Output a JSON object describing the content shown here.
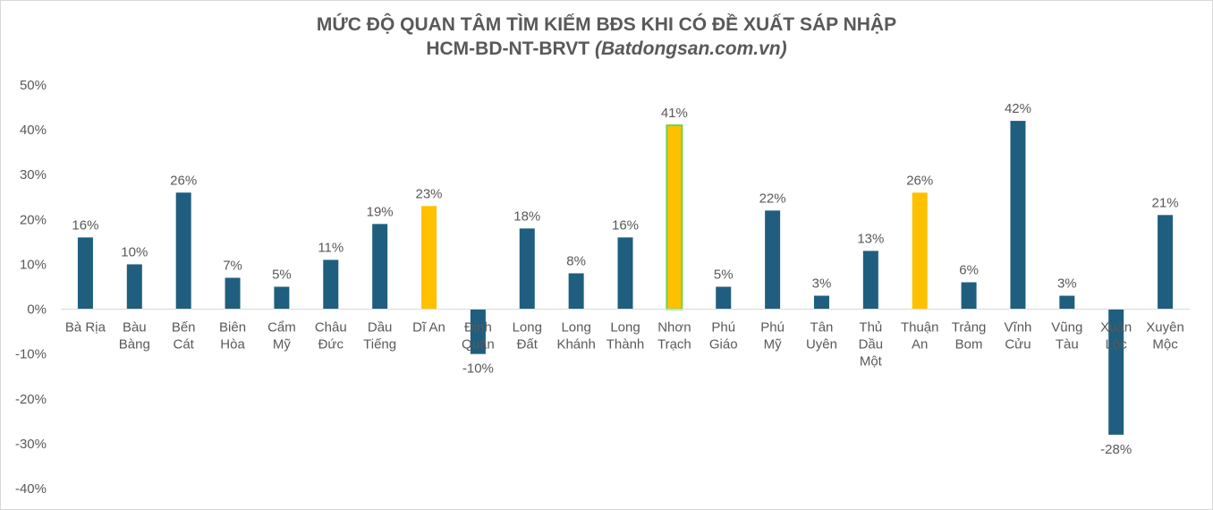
{
  "chart_data": {
    "type": "bar",
    "title": "MỨC ĐỘ QUAN TÂM TÌM KIẾM BĐS KHI CÓ ĐỀ XUẤT SÁP NHẬP",
    "subtitle": "HCM-BD-NT-BRVT",
    "source": "(Batdongsan.com.vn)",
    "categories": [
      [
        "Bà Rịa"
      ],
      [
        "Bàu",
        "Bàng"
      ],
      [
        "Bến",
        "Cát"
      ],
      [
        "Biên",
        "Hòa"
      ],
      [
        "Cẩm",
        "Mỹ"
      ],
      [
        "Châu",
        "Đức"
      ],
      [
        "Dầu",
        "Tiếng"
      ],
      [
        "Dĩ An"
      ],
      [
        "Định",
        "Quán"
      ],
      [
        "Long",
        "Đất"
      ],
      [
        "Long",
        "Khánh"
      ],
      [
        "Long",
        "Thành"
      ],
      [
        "Nhơn",
        "Trạch"
      ],
      [
        "Phú",
        "Giáo"
      ],
      [
        "Phú",
        "Mỹ"
      ],
      [
        "Tân",
        "Uyên"
      ],
      [
        "Thủ",
        "Dầu",
        "Một"
      ],
      [
        "Thuận",
        "An"
      ],
      [
        "Trảng",
        "Bom"
      ],
      [
        "Vĩnh",
        "Cửu"
      ],
      [
        "Vũng",
        "Tàu"
      ],
      [
        "Xuân",
        "Lộc"
      ],
      [
        "Xuyên",
        "Mộc"
      ]
    ],
    "values": [
      16,
      10,
      26,
      7,
      5,
      11,
      19,
      23,
      -10,
      18,
      8,
      16,
      41,
      5,
      22,
      3,
      13,
      26,
      6,
      42,
      3,
      -28,
      21
    ],
    "data_labels": [
      "16%",
      "10%",
      "26%",
      "7%",
      "5%",
      "11%",
      "19%",
      "23%",
      "-10%",
      "18%",
      "8%",
      "16%",
      "41%",
      "5%",
      "22%",
      "3%",
      "13%",
      "26%",
      "6%",
      "42%",
      "3%",
      "-28%",
      "21%"
    ],
    "highlight": [
      false,
      false,
      false,
      false,
      false,
      false,
      false,
      true,
      false,
      false,
      false,
      false,
      true,
      false,
      false,
      false,
      false,
      true,
      false,
      false,
      false,
      false,
      false
    ],
    "highlight_border": [
      false,
      false,
      false,
      false,
      false,
      false,
      false,
      false,
      false,
      false,
      false,
      false,
      true,
      false,
      false,
      false,
      false,
      false,
      false,
      false,
      false,
      false,
      false
    ],
    "y_ticks": [
      50,
      40,
      30,
      20,
      10,
      0,
      -10,
      -20,
      -30,
      -40
    ],
    "y_tick_labels": [
      "50%",
      "40%",
      "30%",
      "20%",
      "10%",
      "0%",
      "-10%",
      "-20%",
      "-30%",
      "-40%"
    ],
    "ylim": [
      -40,
      50
    ],
    "grid": false,
    "legend": "none",
    "colors": {
      "bar": "#1F5E7E",
      "highlight": "#FFC000",
      "highlight_border": "#70D24B",
      "axis": "#D9D9D9",
      "text": "#595959"
    }
  }
}
